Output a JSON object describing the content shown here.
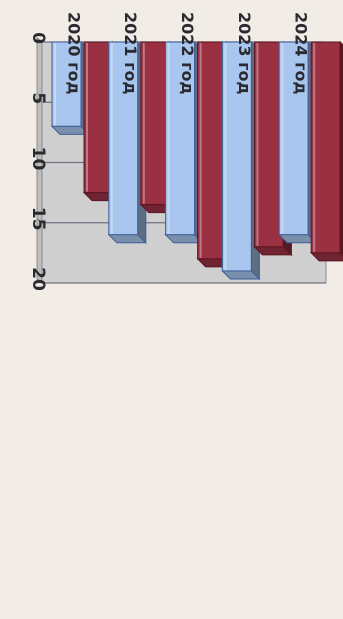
{
  "chart_data": {
    "type": "bar",
    "orientation": "horizontal-3d",
    "categories": [
      "2020 год",
      "2021 год",
      "2022 год",
      "2023 год",
      "2024 год"
    ],
    "series": [
      {
        "values": [
          7,
          16,
          16,
          19,
          16
        ],
        "color": "#a9c6ee",
        "edge": "#3d5e98"
      },
      {
        "values": [
          12.5,
          13.5,
          18,
          17,
          17.5
        ],
        "color": "#9b3043",
        "edge": "#5a1722"
      }
    ],
    "value_axis": {
      "min": 0,
      "max": 20,
      "ticks": [
        0,
        5,
        10,
        15,
        20
      ]
    },
    "grid": true,
    "legend": "none"
  },
  "colors": {
    "paper": "#f1ece6",
    "plot_back": "#cfcfcf",
    "gridline": "#6f7480",
    "text": "#2a2a30"
  }
}
